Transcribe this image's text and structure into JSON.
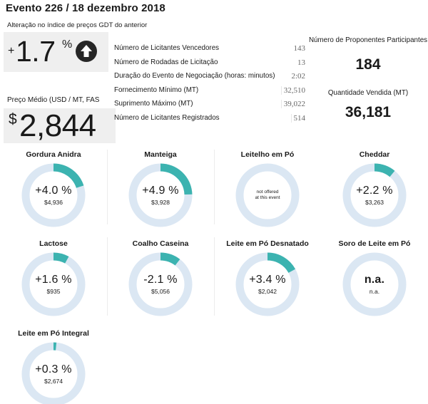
{
  "header": {
    "title": "Evento 226 / 18 dezembro 2018",
    "change_label": "Alteração no índice de preços GDT do anterior"
  },
  "change": {
    "sign": "+",
    "value": "1.7",
    "unit": "%",
    "direction_icon": "arrow-up-icon"
  },
  "price": {
    "label": "Preço Médio (USD / MT, FAS",
    "currency": "$",
    "value": "2,844"
  },
  "stats": [
    {
      "label": "Número de Licitantes Vencedores",
      "value": "143"
    },
    {
      "label": "Número de Rodadas de Licitação",
      "value": "13"
    },
    {
      "label": "Duração do Evento de Negociação (horas: minutos)",
      "value": "2:02"
    },
    {
      "label": "Fornecimento Mínimo (MT)",
      "value": "32,510"
    },
    {
      "label": "Suprimento Máximo (MT)",
      "value": "39,022"
    },
    {
      "label": "Número de Licitantes Registrados",
      "value": "514"
    }
  ],
  "participants": {
    "label": "Número de Proponentes Participantes",
    "value": "184"
  },
  "quantity": {
    "label": "Quantidade Vendida (MT)",
    "value": "36,181"
  },
  "colors": {
    "ring_track": "#dbe7f3",
    "ring_fill": "#3cb3b0",
    "box_bg": "#efefef"
  },
  "products": [
    {
      "name": "Gordura Anidra",
      "change": "+4.0 %",
      "price": "$4,936",
      "change_value": 4.0
    },
    {
      "name": "Manteiga",
      "change": "+4.9 %",
      "price": "$3,928",
      "change_value": 4.9
    },
    {
      "name": "Leitelho em Pó",
      "change": "",
      "price": "",
      "note_line1": "not offered",
      "note_line2": "at this event",
      "change_value": 0
    },
    {
      "name": "Cheddar",
      "change": "+2.2 %",
      "price": "$3,263",
      "change_value": 2.2
    },
    {
      "name": "Lactose",
      "change": "+1.6 %",
      "price": "$935",
      "change_value": 1.6
    },
    {
      "name": "Coalho Caseina",
      "change": "-2.1 %",
      "price": "$5,056",
      "change_value": -2.1
    },
    {
      "name": "Leite em  Pó Desnatado",
      "change": "+3.4 %",
      "price": "$2,042",
      "change_value": 3.4
    },
    {
      "name": "Soro de Leite em Pó",
      "change": "n.a.",
      "price": "n.a.",
      "change_value": 0
    },
    {
      "name": "Leite em Pó Integral",
      "change": "+0.3 %",
      "price": "$2,674",
      "change_value": 0.3
    }
  ]
}
